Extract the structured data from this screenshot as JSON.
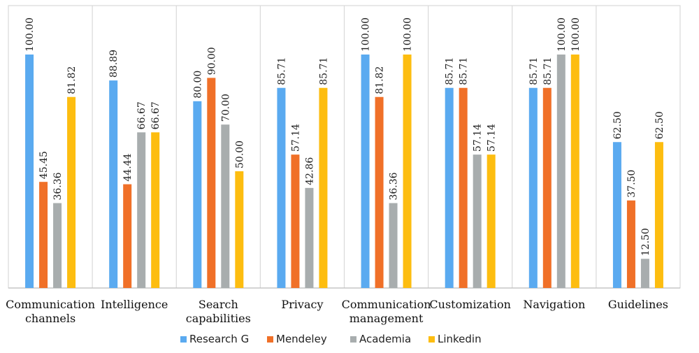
{
  "chart_data": {
    "type": "bar",
    "title": "",
    "xlabel": "",
    "ylabel": "",
    "ylim": [
      0,
      100
    ],
    "grid": false,
    "legend_position": "bottom",
    "categories": [
      [
        "Communication",
        "channels"
      ],
      [
        "Intelligence"
      ],
      [
        "Search",
        "capabilities"
      ],
      [
        "Privacy"
      ],
      [
        "Communication",
        "management"
      ],
      [
        "Customization"
      ],
      [
        "Navigation"
      ],
      [
        "Guidelines"
      ]
    ],
    "series": [
      {
        "name": "Research G",
        "color": "#5aaaf0",
        "values": [
          100.0,
          88.89,
          80.0,
          85.71,
          100.0,
          85.71,
          85.71,
          62.5
        ],
        "labels": [
          "100.00",
          "88.89",
          "80.00",
          "85.71",
          "100.00",
          "85.71",
          "85.71",
          "62.50"
        ]
      },
      {
        "name": "Mendeley",
        "color": "#f07028",
        "values": [
          45.45,
          44.44,
          90.0,
          57.14,
          81.82,
          85.71,
          85.71,
          37.5
        ],
        "labels": [
          "45.45",
          "44.44",
          "90.00",
          "57.14",
          "81.82",
          "85.71",
          "85.71",
          "37.50"
        ]
      },
      {
        "name": "Academia",
        "color": "#a8adae",
        "values": [
          36.36,
          66.67,
          70.0,
          42.86,
          36.36,
          57.14,
          100.0,
          12.5
        ],
        "labels": [
          "36.36",
          "66.67",
          "70.00",
          "42.86",
          "36.36",
          "57.14",
          "100.00",
          "12.50"
        ]
      },
      {
        "name": "Linkedin",
        "color": "#fdbd10",
        "values": [
          81.82,
          66.67,
          50.0,
          85.71,
          100.0,
          57.14,
          100.0,
          62.5
        ],
        "labels": [
          "81.82",
          "66.67",
          "50.00",
          "85.71",
          "100.00",
          "57.14",
          "100.00",
          "62.50"
        ]
      }
    ]
  }
}
